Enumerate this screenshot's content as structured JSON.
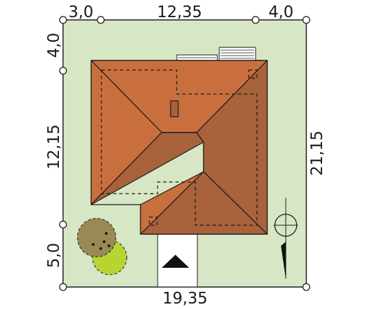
{
  "dimensions": {
    "top": [
      "3,0",
      "12,35",
      "4,0"
    ],
    "left": [
      "4,0",
      "12,15",
      "5,0"
    ],
    "right": "21,15",
    "bottom": "19,35"
  },
  "colors": {
    "plot": "#d7e6c4",
    "roof_light": "#c96f3e",
    "roof_dark": "#a8623c",
    "outline": "#1a1a1a",
    "tree_dark": "#998a55",
    "tree_light": "#b8d431"
  },
  "icons": [
    "north-compass-icon",
    "entrance-arrow-icon",
    "tree-icon",
    "chimney-icon",
    "skylight-icon"
  ]
}
